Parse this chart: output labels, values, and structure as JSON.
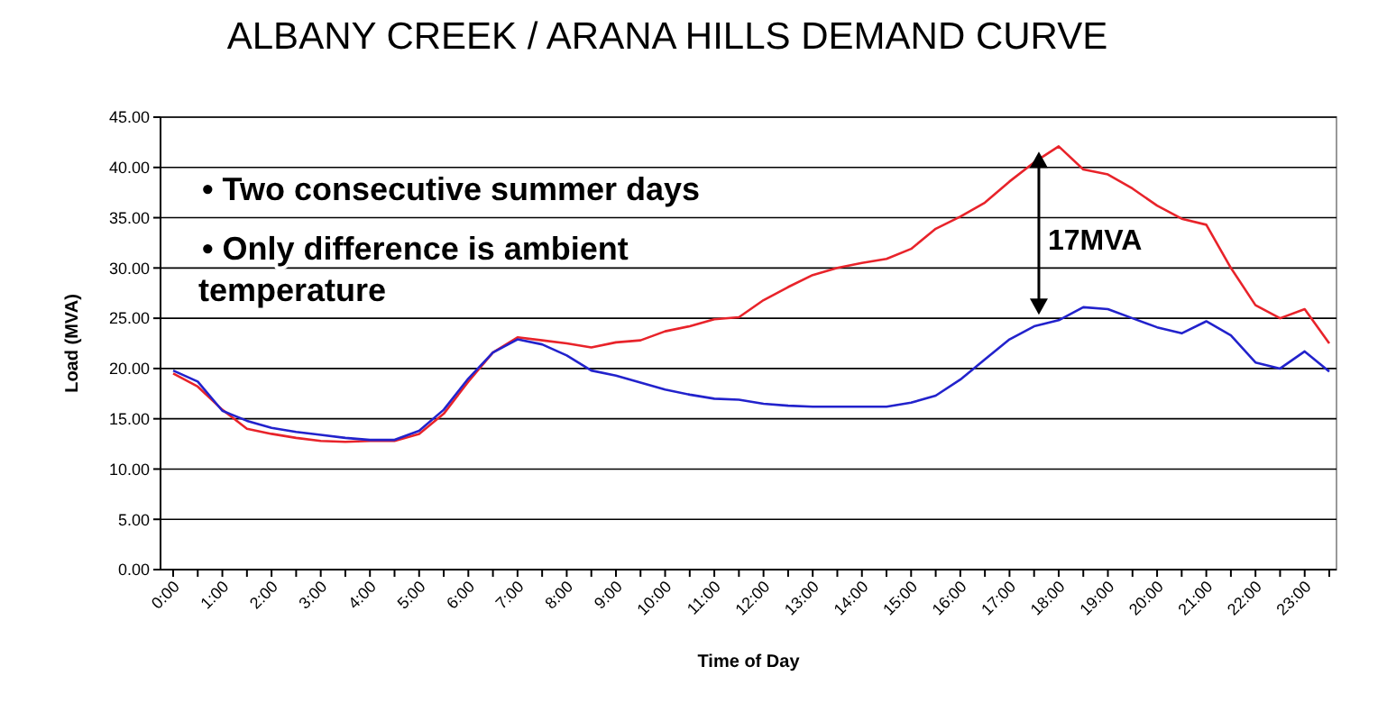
{
  "chart_data": {
    "type": "line",
    "title": "ALBANY CREEK / ARANA HILLS DEMAND CURVE",
    "xlabel": "Time of Day",
    "ylabel": "Load (MVA)",
    "categories": [
      "0:00",
      null,
      "1:00",
      null,
      "2:00",
      null,
      "3:00",
      null,
      "4:00",
      null,
      "5:00",
      null,
      "6:00",
      null,
      "7:00",
      null,
      "8:00",
      null,
      "9:00",
      null,
      "10:00",
      null,
      "11:00",
      null,
      "12:00",
      null,
      "13:00",
      null,
      "14:00",
      null,
      "15:00",
      null,
      "16:00",
      null,
      "17:00",
      null,
      "18:00",
      null,
      "19:00",
      null,
      "20:00",
      null,
      "21:00",
      null,
      "22:00",
      null,
      "23:00",
      null
    ],
    "series": [
      {
        "color": "#e8232a",
        "values": [
          19.5,
          18.2,
          15.9,
          14.0,
          13.5,
          13.1,
          12.8,
          12.7,
          12.8,
          12.8,
          13.5,
          15.5,
          18.7,
          21.6,
          23.1,
          22.8,
          22.5,
          22.1,
          22.6,
          22.8,
          23.7,
          24.2,
          24.9,
          25.1,
          26.8,
          28.1,
          29.3,
          30.0,
          30.5,
          30.9,
          31.9,
          33.9,
          35.1,
          36.5,
          38.6,
          40.5,
          42.1,
          39.8,
          39.3,
          37.9,
          36.2,
          34.9,
          34.3,
          30.0,
          26.3,
          25.0,
          25.9,
          22.5
        ]
      },
      {
        "color": "#2222cc",
        "values": [
          19.8,
          18.7,
          15.8,
          14.8,
          14.1,
          13.7,
          13.4,
          13.1,
          12.9,
          12.9,
          13.8,
          15.9,
          19.0,
          21.6,
          22.9,
          22.4,
          21.3,
          19.8,
          19.3,
          18.6,
          17.9,
          17.4,
          17.0,
          16.9,
          16.5,
          16.3,
          16.2,
          16.2,
          16.2,
          16.2,
          16.6,
          17.3,
          18.9,
          20.9,
          22.9,
          24.2,
          24.8,
          26.1,
          25.9,
          25.0,
          24.1,
          23.5,
          24.7,
          23.3,
          20.6,
          20.0,
          21.7,
          19.7
        ]
      }
    ],
    "ylim": [
      0,
      45
    ],
    "yticks": [
      {
        "value": 0,
        "label": "0.00"
      },
      {
        "value": 5,
        "label": "5.00"
      },
      {
        "value": 10,
        "label": "10.00"
      },
      {
        "value": 15,
        "label": "15.00"
      },
      {
        "value": 20,
        "label": "20.00"
      },
      {
        "value": 25,
        "label": "25.00"
      },
      {
        "value": 30,
        "label": "30.00"
      },
      {
        "value": 35,
        "label": "35.00"
      },
      {
        "value": 40,
        "label": "40.00"
      },
      {
        "value": 45,
        "label": "45.00"
      }
    ],
    "grid": "y",
    "marker": "none",
    "line_style": "solid",
    "annotations": [
      "• Two consecutive summer days",
      "• Only difference is ambient\ntemperature",
      "17MVA"
    ]
  }
}
